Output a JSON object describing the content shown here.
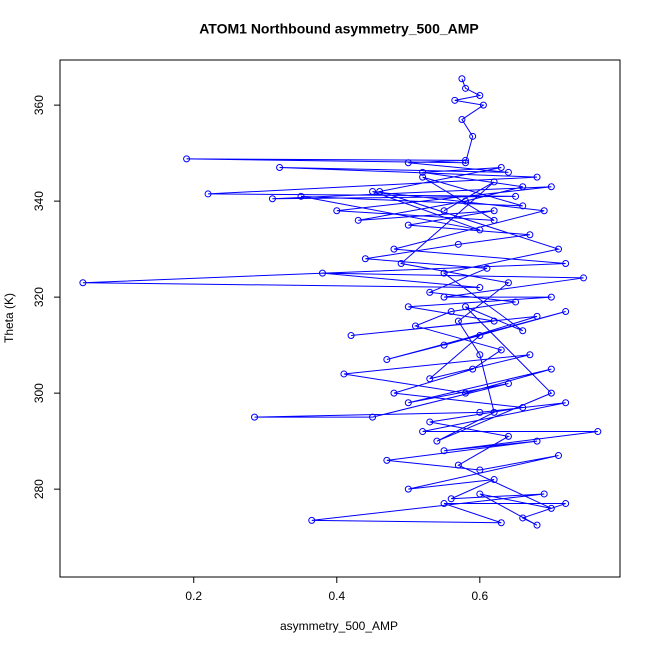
{
  "chart_data": {
    "type": "line",
    "title": "ATOM1 Northbound asymmetry_500_AMP",
    "x_label": "asymmetry_500_AMP",
    "y_label": "Theta (K)",
    "xlim": [
      0.013,
      0.796
    ],
    "ylim": [
      261.7,
      369.4
    ],
    "xticks": [
      0.2,
      0.4,
      0.6
    ],
    "yticks": [
      280,
      300,
      320,
      340,
      360
    ],
    "markers": true,
    "series": [
      {
        "name": "Theta",
        "color": "#0000ff",
        "x": [
          0.575,
          0.58,
          0.6,
          0.565,
          0.605,
          0.575,
          0.59,
          0.58,
          0.19,
          0.58,
          0.5,
          0.64,
          0.32,
          0.68,
          0.22,
          0.65,
          0.31,
          0.7,
          0.4,
          0.62,
          0.52,
          0.66,
          0.35,
          0.6,
          0.45,
          0.69,
          0.48,
          0.72,
          0.045,
          0.6,
          0.38,
          0.745,
          0.55,
          0.7,
          0.5,
          0.62,
          0.42,
          0.68,
          0.55,
          0.72,
          0.47,
          0.6,
          0.53,
          0.67,
          0.41,
          0.58,
          0.7,
          0.5,
          0.64,
          0.45,
          0.285,
          0.6,
          0.72,
          0.52,
          0.765,
          0.55,
          0.68,
          0.47,
          0.6,
          0.71,
          0.5,
          0.62,
          0.56,
          0.69,
          0.365,
          0.63,
          0.55,
          0.72,
          0.66,
          0.68,
          0.6,
          0.7,
          0.57,
          0.64,
          0.53,
          0.66,
          0.48,
          0.59,
          0.63,
          0.51,
          0.56,
          0.65,
          0.53,
          0.61,
          0.44,
          0.57,
          0.67,
          0.5,
          0.62,
          0.43,
          0.58,
          0.66,
          0.52,
          0.63,
          0.46,
          0.71,
          0.55,
          0.66,
          0.58,
          0.7,
          0.54,
          0.62,
          0.6,
          0.57,
          0.64,
          0.49,
          0.62,
          0.55
        ],
        "values": [
          365.5,
          363.5,
          362,
          361,
          360,
          357,
          353.5,
          348,
          348.8,
          348.5,
          348,
          346,
          347,
          345,
          341.5,
          341,
          340.5,
          343,
          338,
          336,
          345,
          339,
          341,
          334,
          342,
          338,
          330,
          327,
          323,
          322,
          325,
          324,
          320,
          320,
          318,
          315,
          312,
          316,
          310,
          317,
          307,
          312,
          303,
          308,
          304,
          300,
          305,
          298,
          302,
          295,
          295,
          296,
          298,
          292,
          292,
          288,
          290,
          286,
          284,
          287,
          280,
          282,
          278,
          279,
          273.5,
          273,
          277,
          277,
          274,
          272.5,
          279,
          276,
          285,
          291,
          294,
          297,
          300,
          305,
          309,
          314,
          317,
          319,
          321,
          326,
          328,
          331,
          333,
          335,
          338,
          336,
          340,
          343,
          346,
          347,
          342,
          330,
          325,
          313,
          318,
          300,
          290,
          296,
          308,
          315,
          323,
          327,
          344,
          338
        ]
      }
    ]
  }
}
